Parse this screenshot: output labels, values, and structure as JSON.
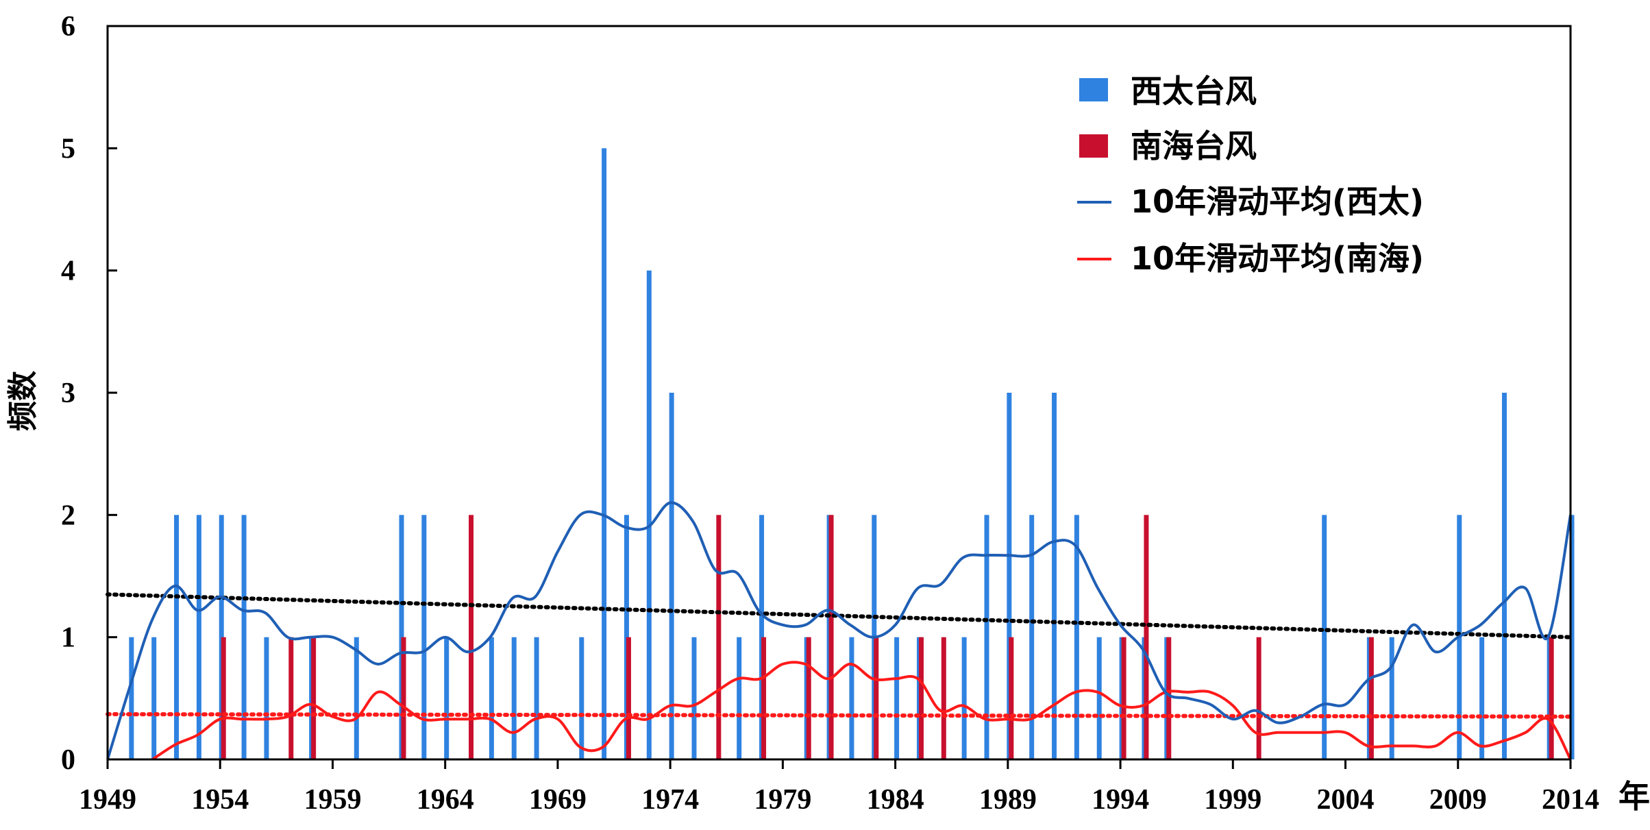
{
  "chart_data": {
    "type": "bar",
    "title": "",
    "xlabel": "",
    "x_unit": "年",
    "ylabel": "频数",
    "xlim": [
      1949,
      2014
    ],
    "ylim": [
      0,
      6
    ],
    "yticks": [
      "0",
      "1",
      "2",
      "3",
      "4",
      "5",
      "6"
    ],
    "xticks": [
      "1949",
      "1954",
      "1959",
      "1964",
      "1969",
      "1974",
      "1979",
      "1984",
      "1989",
      "1994",
      "1999",
      "2004",
      "2009",
      "2014"
    ],
    "grid": false,
    "legend_position": "top-right",
    "colors": {
      "west_pacific": "#2f82e0",
      "south_china_sea": "#c8102e",
      "ma_west": "#1f5fb5",
      "ma_south": "#ff1a1a",
      "trend_west": "#000000",
      "trend_south": "#ff1a1a"
    },
    "series": [
      {
        "name": "西太台风",
        "type": "bar",
        "points": [
          {
            "x": 1950,
            "y": 1
          },
          {
            "x": 1951,
            "y": 1
          },
          {
            "x": 1952,
            "y": 2
          },
          {
            "x": 1953,
            "y": 2
          },
          {
            "x": 1954,
            "y": 2
          },
          {
            "x": 1955,
            "y": 2
          },
          {
            "x": 1956,
            "y": 1
          },
          {
            "x": 1958,
            "y": 1
          },
          {
            "x": 1960,
            "y": 1
          },
          {
            "x": 1962,
            "y": 2
          },
          {
            "x": 1963,
            "y": 2
          },
          {
            "x": 1964,
            "y": 1
          },
          {
            "x": 1966,
            "y": 1
          },
          {
            "x": 1967,
            "y": 1
          },
          {
            "x": 1968,
            "y": 1
          },
          {
            "x": 1970,
            "y": 1
          },
          {
            "x": 1971,
            "y": 5
          },
          {
            "x": 1972,
            "y": 2
          },
          {
            "x": 1973,
            "y": 4
          },
          {
            "x": 1974,
            "y": 3
          },
          {
            "x": 1975,
            "y": 1
          },
          {
            "x": 1977,
            "y": 1
          },
          {
            "x": 1978,
            "y": 2
          },
          {
            "x": 1980,
            "y": 1
          },
          {
            "x": 1981,
            "y": 2
          },
          {
            "x": 1982,
            "y": 1
          },
          {
            "x": 1983,
            "y": 2
          },
          {
            "x": 1984,
            "y": 1
          },
          {
            "x": 1985,
            "y": 1
          },
          {
            "x": 1987,
            "y": 1
          },
          {
            "x": 1988,
            "y": 2
          },
          {
            "x": 1989,
            "y": 3
          },
          {
            "x": 1990,
            "y": 2
          },
          {
            "x": 1991,
            "y": 3
          },
          {
            "x": 1992,
            "y": 2
          },
          {
            "x": 1993,
            "y": 1
          },
          {
            "x": 1994,
            "y": 1
          },
          {
            "x": 1995,
            "y": 1
          },
          {
            "x": 1996,
            "y": 1
          },
          {
            "x": 2003,
            "y": 2
          },
          {
            "x": 2005,
            "y": 1
          },
          {
            "x": 2006,
            "y": 1
          },
          {
            "x": 2009,
            "y": 2
          },
          {
            "x": 2010,
            "y": 1
          },
          {
            "x": 2011,
            "y": 3
          },
          {
            "x": 2013,
            "y": 1
          },
          {
            "x": 2014,
            "y": 2
          }
        ]
      },
      {
        "name": "南海台风",
        "type": "bar",
        "points": [
          {
            "x": 1954,
            "y": 1
          },
          {
            "x": 1957,
            "y": 1
          },
          {
            "x": 1958,
            "y": 1
          },
          {
            "x": 1962,
            "y": 1
          },
          {
            "x": 1965,
            "y": 2
          },
          {
            "x": 1972,
            "y": 1
          },
          {
            "x": 1976,
            "y": 2
          },
          {
            "x": 1978,
            "y": 1
          },
          {
            "x": 1980,
            "y": 1
          },
          {
            "x": 1981,
            "y": 2
          },
          {
            "x": 1983,
            "y": 1
          },
          {
            "x": 1985,
            "y": 1
          },
          {
            "x": 1986,
            "y": 1
          },
          {
            "x": 1989,
            "y": 1
          },
          {
            "x": 1994,
            "y": 1
          },
          {
            "x": 1995,
            "y": 2
          },
          {
            "x": 1996,
            "y": 1
          },
          {
            "x": 2000,
            "y": 1
          },
          {
            "x": 2005,
            "y": 1
          },
          {
            "x": 2013,
            "y": 1
          }
        ]
      },
      {
        "name": "10年滑动平均(西太)",
        "type": "line",
        "points": [
          {
            "x": 1949,
            "y": 0
          },
          {
            "x": 1950,
            "y": 0.6
          },
          {
            "x": 1951,
            "y": 1.15
          },
          {
            "x": 1952,
            "y": 1.42
          },
          {
            "x": 1953,
            "y": 1.22
          },
          {
            "x": 1954,
            "y": 1.33
          },
          {
            "x": 1955,
            "y": 1.22
          },
          {
            "x": 1956,
            "y": 1.2
          },
          {
            "x": 1957,
            "y": 1.0
          },
          {
            "x": 1958,
            "y": 1.0
          },
          {
            "x": 1959,
            "y": 1.0
          },
          {
            "x": 1960,
            "y": 0.9
          },
          {
            "x": 1961,
            "y": 0.78
          },
          {
            "x": 1962,
            "y": 0.87
          },
          {
            "x": 1963,
            "y": 0.88
          },
          {
            "x": 1964,
            "y": 1.0
          },
          {
            "x": 1965,
            "y": 0.88
          },
          {
            "x": 1966,
            "y": 1.0
          },
          {
            "x": 1967,
            "y": 1.32
          },
          {
            "x": 1968,
            "y": 1.33
          },
          {
            "x": 1969,
            "y": 1.7
          },
          {
            "x": 1970,
            "y": 2.0
          },
          {
            "x": 1971,
            "y": 2.0
          },
          {
            "x": 1972,
            "y": 1.9
          },
          {
            "x": 1973,
            "y": 1.9
          },
          {
            "x": 1974,
            "y": 2.1
          },
          {
            "x": 1975,
            "y": 1.95
          },
          {
            "x": 1976,
            "y": 1.55
          },
          {
            "x": 1977,
            "y": 1.52
          },
          {
            "x": 1978,
            "y": 1.2
          },
          {
            "x": 1979,
            "y": 1.1
          },
          {
            "x": 1980,
            "y": 1.1
          },
          {
            "x": 1981,
            "y": 1.22
          },
          {
            "x": 1982,
            "y": 1.1
          },
          {
            "x": 1983,
            "y": 1.0
          },
          {
            "x": 1984,
            "y": 1.1
          },
          {
            "x": 1985,
            "y": 1.4
          },
          {
            "x": 1986,
            "y": 1.43
          },
          {
            "x": 1987,
            "y": 1.65
          },
          {
            "x": 1988,
            "y": 1.67
          },
          {
            "x": 1989,
            "y": 1.67
          },
          {
            "x": 1990,
            "y": 1.67
          },
          {
            "x": 1991,
            "y": 1.78
          },
          {
            "x": 1992,
            "y": 1.75
          },
          {
            "x": 1993,
            "y": 1.4
          },
          {
            "x": 1994,
            "y": 1.1
          },
          {
            "x": 1995,
            "y": 0.9
          },
          {
            "x": 1996,
            "y": 0.55
          },
          {
            "x": 1997,
            "y": 0.5
          },
          {
            "x": 1998,
            "y": 0.45
          },
          {
            "x": 1999,
            "y": 0.33
          },
          {
            "x": 2000,
            "y": 0.4
          },
          {
            "x": 2001,
            "y": 0.3
          },
          {
            "x": 2002,
            "y": 0.35
          },
          {
            "x": 2003,
            "y": 0.45
          },
          {
            "x": 2004,
            "y": 0.45
          },
          {
            "x": 2005,
            "y": 0.65
          },
          {
            "x": 2006,
            "y": 0.75
          },
          {
            "x": 2007,
            "y": 1.1
          },
          {
            "x": 2008,
            "y": 0.88
          },
          {
            "x": 2009,
            "y": 1.0
          },
          {
            "x": 2010,
            "y": 1.1
          },
          {
            "x": 2011,
            "y": 1.28
          },
          {
            "x": 2012,
            "y": 1.4
          },
          {
            "x": 2013,
            "y": 1.0
          },
          {
            "x": 2014,
            "y": 2.0
          }
        ]
      },
      {
        "name": "10年滑动平均(南海)",
        "type": "line",
        "points": [
          {
            "x": 1951,
            "y": 0
          },
          {
            "x": 1952,
            "y": 0.12
          },
          {
            "x": 1953,
            "y": 0.2
          },
          {
            "x": 1954,
            "y": 0.33
          },
          {
            "x": 1955,
            "y": 0.33
          },
          {
            "x": 1956,
            "y": 0.33
          },
          {
            "x": 1957,
            "y": 0.35
          },
          {
            "x": 1958,
            "y": 0.45
          },
          {
            "x": 1959,
            "y": 0.35
          },
          {
            "x": 1960,
            "y": 0.33
          },
          {
            "x": 1961,
            "y": 0.55
          },
          {
            "x": 1962,
            "y": 0.45
          },
          {
            "x": 1963,
            "y": 0.33
          },
          {
            "x": 1964,
            "y": 0.33
          },
          {
            "x": 1965,
            "y": 0.33
          },
          {
            "x": 1966,
            "y": 0.33
          },
          {
            "x": 1967,
            "y": 0.22
          },
          {
            "x": 1968,
            "y": 0.33
          },
          {
            "x": 1969,
            "y": 0.33
          },
          {
            "x": 1970,
            "y": 0.1
          },
          {
            "x": 1971,
            "y": 0.1
          },
          {
            "x": 1972,
            "y": 0.33
          },
          {
            "x": 1973,
            "y": 0.33
          },
          {
            "x": 1974,
            "y": 0.44
          },
          {
            "x": 1975,
            "y": 0.44
          },
          {
            "x": 1976,
            "y": 0.55
          },
          {
            "x": 1977,
            "y": 0.66
          },
          {
            "x": 1978,
            "y": 0.66
          },
          {
            "x": 1979,
            "y": 0.78
          },
          {
            "x": 1980,
            "y": 0.78
          },
          {
            "x": 1981,
            "y": 0.66
          },
          {
            "x": 1982,
            "y": 0.78
          },
          {
            "x": 1983,
            "y": 0.66
          },
          {
            "x": 1984,
            "y": 0.66
          },
          {
            "x": 1985,
            "y": 0.66
          },
          {
            "x": 1986,
            "y": 0.4
          },
          {
            "x": 1987,
            "y": 0.44
          },
          {
            "x": 1988,
            "y": 0.33
          },
          {
            "x": 1989,
            "y": 0.33
          },
          {
            "x": 1990,
            "y": 0.33
          },
          {
            "x": 1991,
            "y": 0.44
          },
          {
            "x": 1992,
            "y": 0.55
          },
          {
            "x": 1993,
            "y": 0.55
          },
          {
            "x": 1994,
            "y": 0.44
          },
          {
            "x": 1995,
            "y": 0.44
          },
          {
            "x": 1996,
            "y": 0.55
          },
          {
            "x": 1997,
            "y": 0.55
          },
          {
            "x": 1998,
            "y": 0.55
          },
          {
            "x": 1999,
            "y": 0.44
          },
          {
            "x": 2000,
            "y": 0.22
          },
          {
            "x": 2001,
            "y": 0.22
          },
          {
            "x": 2002,
            "y": 0.22
          },
          {
            "x": 2003,
            "y": 0.22
          },
          {
            "x": 2004,
            "y": 0.22
          },
          {
            "x": 2005,
            "y": 0.11
          },
          {
            "x": 2006,
            "y": 0.11
          },
          {
            "x": 2007,
            "y": 0.11
          },
          {
            "x": 2008,
            "y": 0.11
          },
          {
            "x": 2009,
            "y": 0.22
          },
          {
            "x": 2010,
            "y": 0.11
          },
          {
            "x": 2011,
            "y": 0.15
          },
          {
            "x": 2012,
            "y": 0.22
          },
          {
            "x": 2013,
            "y": 0.33
          },
          {
            "x": 2014,
            "y": 0
          }
        ]
      },
      {
        "type": "trend",
        "style": "dotted",
        "points": [
          {
            "x": 1949,
            "y": 1.35
          },
          {
            "x": 2014,
            "y": 1.0
          }
        ]
      },
      {
        "type": "trend",
        "style": "dotted",
        "points": [
          {
            "x": 1949,
            "y": 0.37
          },
          {
            "x": 2014,
            "y": 0.35
          }
        ]
      }
    ]
  }
}
